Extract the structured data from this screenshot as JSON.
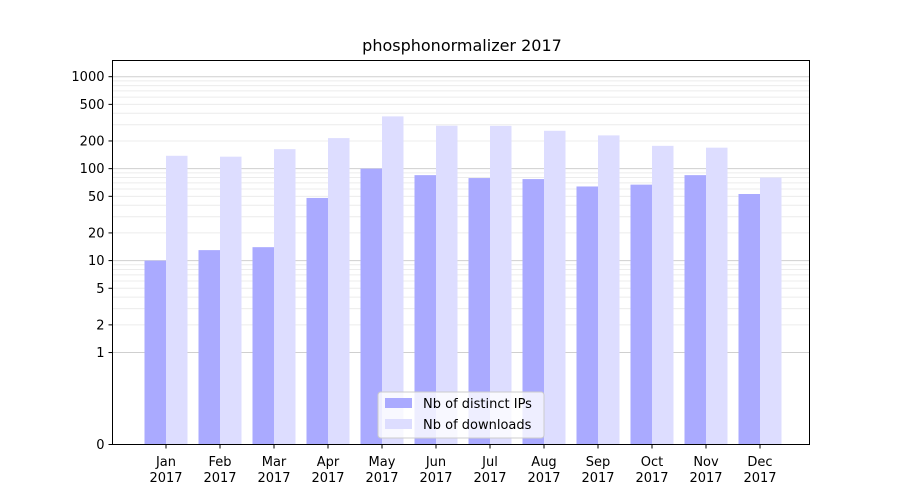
{
  "chart_data": {
    "type": "bar",
    "title": "phosphonormalizer 2017",
    "xlabel": "",
    "ylabel": "",
    "yscale": "symlog",
    "ylim": [
      0,
      1500
    ],
    "yticks": [
      {
        "value": 0,
        "label": "0"
      },
      {
        "value": 1,
        "label": "1"
      },
      {
        "value": 2,
        "label": "2"
      },
      {
        "value": 5,
        "label": "5"
      },
      {
        "value": 10,
        "label": "10"
      },
      {
        "value": 20,
        "label": "20"
      },
      {
        "value": 50,
        "label": "50"
      },
      {
        "value": 100,
        "label": "100"
      },
      {
        "value": 200,
        "label": "200"
      },
      {
        "value": 500,
        "label": "500"
      },
      {
        "value": 1000,
        "label": "1000"
      }
    ],
    "categories": [
      {
        "month": "Jan",
        "year": "2017"
      },
      {
        "month": "Feb",
        "year": "2017"
      },
      {
        "month": "Mar",
        "year": "2017"
      },
      {
        "month": "Apr",
        "year": "2017"
      },
      {
        "month": "May",
        "year": "2017"
      },
      {
        "month": "Jun",
        "year": "2017"
      },
      {
        "month": "Jul",
        "year": "2017"
      },
      {
        "month": "Aug",
        "year": "2017"
      },
      {
        "month": "Sep",
        "year": "2017"
      },
      {
        "month": "Oct",
        "year": "2017"
      },
      {
        "month": "Nov",
        "year": "2017"
      },
      {
        "month": "Dec",
        "year": "2017"
      }
    ],
    "series": [
      {
        "name": "Nb of distinct IPs",
        "color": "#aaaaff",
        "values": [
          10,
          13,
          14,
          48,
          100,
          85,
          79,
          77,
          64,
          67,
          85,
          53
        ]
      },
      {
        "name": "Nb of downloads",
        "color": "#ddddff",
        "values": [
          138,
          135,
          163,
          215,
          370,
          293,
          292,
          258,
          230,
          177,
          169,
          80
        ]
      }
    ],
    "grid": true,
    "legend_position": "bottom-center"
  }
}
